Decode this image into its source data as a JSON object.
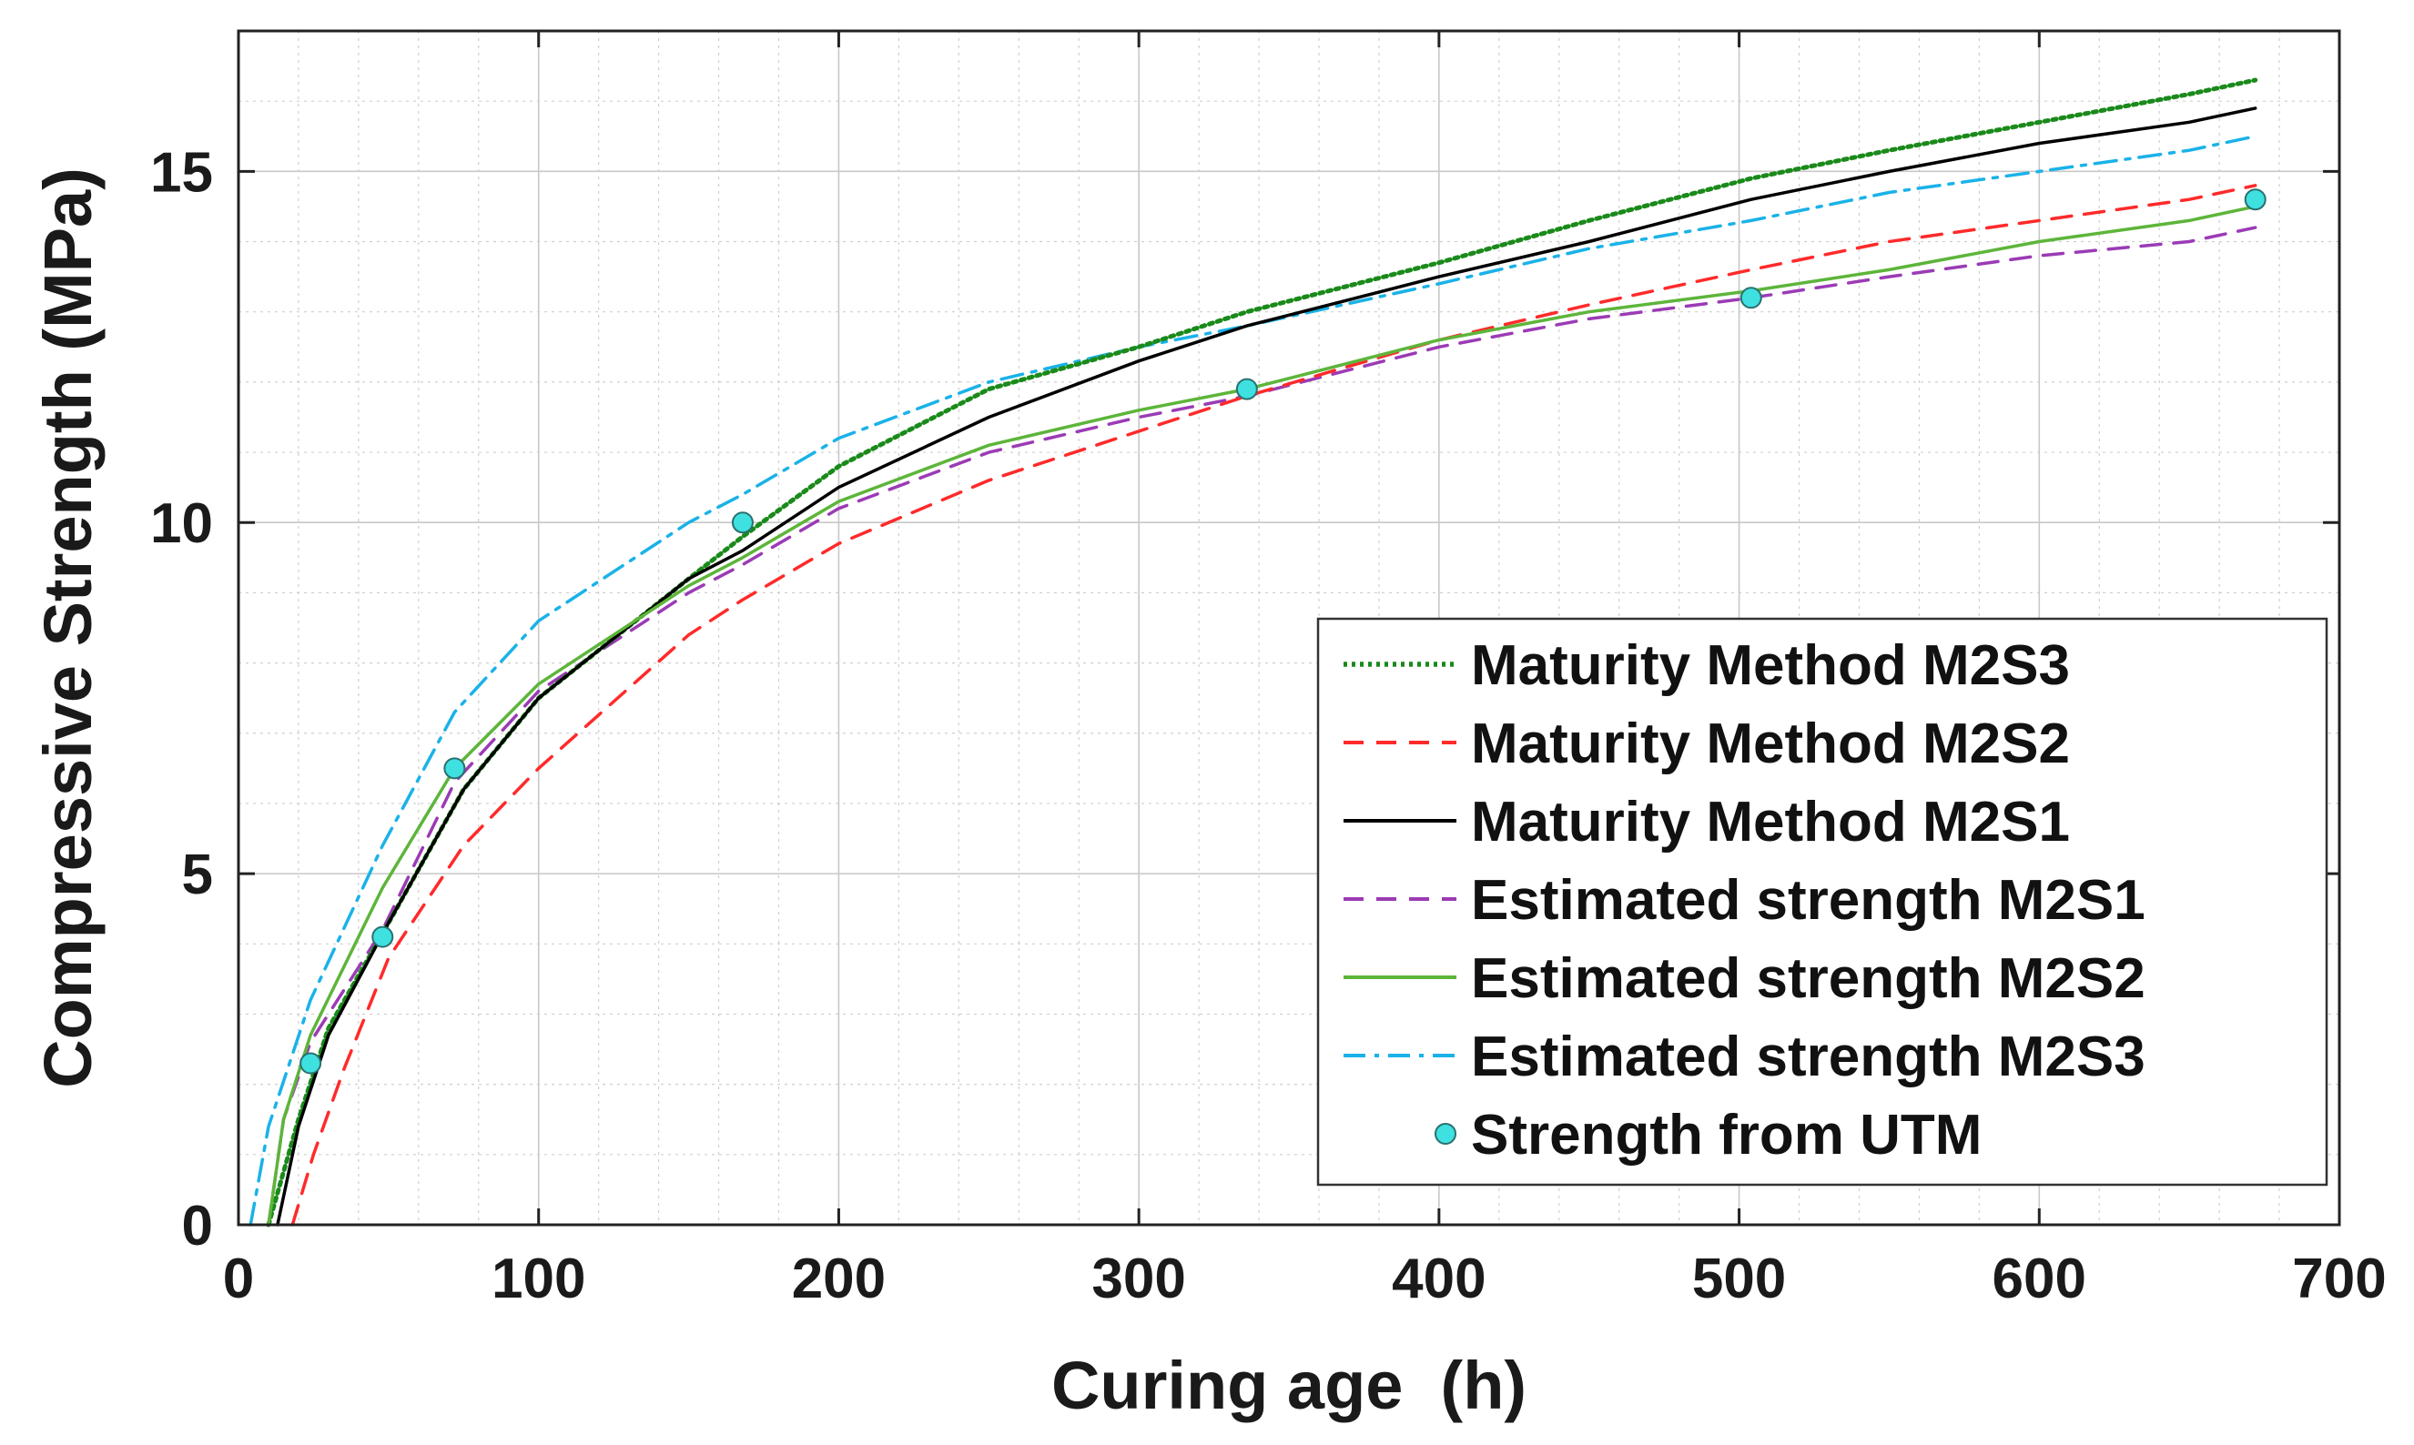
{
  "chart_data": {
    "type": "line",
    "xlabel": "Curing age  (h)",
    "ylabel": "Compressive Strength (MPa)",
    "xlim": [
      0,
      700
    ],
    "ylim": [
      0,
      17
    ],
    "xticks": [
      0,
      100,
      200,
      300,
      400,
      500,
      600,
      700
    ],
    "yticks": [
      0,
      5,
      10,
      15
    ],
    "xtick_labels": [
      "0",
      "100",
      "200",
      "300",
      "400",
      "500",
      "600",
      "700"
    ],
    "ytick_labels": [
      "0",
      "5",
      "10",
      "15"
    ],
    "grid": true,
    "minor_grid": true,
    "legend_position": "bottom-right",
    "series": [
      {
        "name": "Maturity Method M2S3",
        "color": "#1a8a1a",
        "style": "dotted",
        "x": [
          10,
          20,
          30,
          50,
          75,
          100,
          150,
          168,
          200,
          250,
          300,
          336,
          400,
          450,
          504,
          550,
          600,
          650,
          672
        ],
        "y": [
          0,
          1.5,
          2.8,
          4.3,
          6.2,
          7.5,
          9.2,
          9.8,
          10.8,
          11.9,
          12.5,
          13.0,
          13.7,
          14.3,
          14.9,
          15.3,
          15.7,
          16.1,
          16.3
        ]
      },
      {
        "name": "Maturity Method M2S2",
        "color": "#ff2a2a",
        "style": "dashed",
        "x": [
          18,
          25,
          35,
          50,
          75,
          100,
          150,
          168,
          200,
          250,
          300,
          336,
          400,
          450,
          504,
          550,
          600,
          650,
          672
        ],
        "y": [
          0,
          1.0,
          2.2,
          3.8,
          5.4,
          6.5,
          8.4,
          8.9,
          9.7,
          10.6,
          11.3,
          11.8,
          12.6,
          13.1,
          13.6,
          14.0,
          14.3,
          14.6,
          14.8
        ]
      },
      {
        "name": "Maturity Method M2S1",
        "color": "#000000",
        "style": "solid",
        "x": [
          13,
          20,
          30,
          50,
          75,
          100,
          150,
          168,
          200,
          250,
          300,
          336,
          400,
          450,
          504,
          550,
          600,
          650,
          672
        ],
        "y": [
          0,
          1.4,
          2.7,
          4.3,
          6.2,
          7.5,
          9.2,
          9.6,
          10.5,
          11.5,
          12.3,
          12.8,
          13.5,
          14.0,
          14.6,
          15.0,
          15.4,
          15.7,
          15.9
        ]
      },
      {
        "name": "Estimated strength M2S1",
        "color": "#9b3bb5",
        "style": "dashed",
        "x": [
          10,
          15,
          24,
          48,
          72,
          100,
          150,
          168,
          200,
          250,
          300,
          336,
          400,
          450,
          504,
          550,
          600,
          650,
          672
        ],
        "y": [
          0,
          1.5,
          2.6,
          4.2,
          6.3,
          7.6,
          9.0,
          9.4,
          10.2,
          11.0,
          11.5,
          11.8,
          12.5,
          12.9,
          13.2,
          13.5,
          13.8,
          14.0,
          14.2
        ]
      },
      {
        "name": "Estimated strength M2S2",
        "color": "#5db53a",
        "style": "solid",
        "x": [
          10,
          15,
          24,
          48,
          72,
          100,
          150,
          168,
          200,
          250,
          300,
          336,
          400,
          450,
          504,
          550,
          600,
          650,
          672
        ],
        "y": [
          0,
          1.5,
          2.7,
          4.8,
          6.5,
          7.7,
          9.1,
          9.5,
          10.3,
          11.1,
          11.6,
          11.9,
          12.6,
          13.0,
          13.3,
          13.6,
          14.0,
          14.3,
          14.5
        ]
      },
      {
        "name": "Estimated strength M2S3",
        "color": "#1ab2e8",
        "style": "dashdot",
        "x": [
          4,
          10,
          24,
          48,
          72,
          100,
          150,
          168,
          200,
          250,
          300,
          336,
          400,
          450,
          504,
          550,
          600,
          650,
          672
        ],
        "y": [
          0,
          1.4,
          3.2,
          5.4,
          7.3,
          8.6,
          10.0,
          10.4,
          11.2,
          12.0,
          12.5,
          12.8,
          13.4,
          13.9,
          14.3,
          14.7,
          15.0,
          15.3,
          15.5
        ]
      },
      {
        "name": "Strength from UTM",
        "color": "#3fe0e0",
        "style": "marker",
        "x": [
          24,
          48,
          72,
          168,
          336,
          504,
          672
        ],
        "y": [
          2.3,
          4.1,
          6.5,
          10.0,
          11.9,
          13.2,
          14.6
        ]
      }
    ]
  }
}
